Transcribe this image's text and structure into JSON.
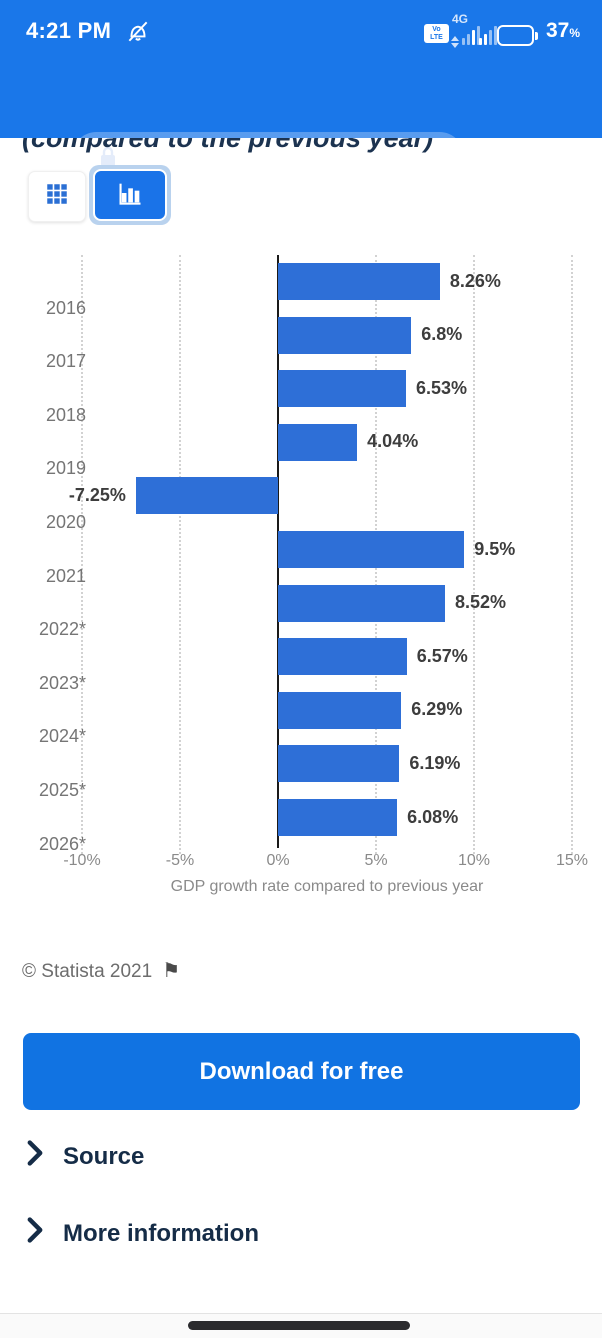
{
  "status_bar": {
    "time": "4:21 PM",
    "volte_line1": "Vo",
    "volte_line2": "LTE",
    "network": "4G",
    "battery_percent": "37",
    "percent_sign": "%"
  },
  "browser": {
    "url_host": "statista.com",
    "url_path": "/statistics/2636",
    "tab_count": "2"
  },
  "page": {
    "title_fragment": "(compared to the previous year)",
    "copyright": "© Statista 2021",
    "flag_glyph": "⚑",
    "download_button": "Download for free",
    "source_label": "Source",
    "more_info_label": "More information"
  },
  "chart_data": {
    "type": "bar",
    "orientation": "horizontal",
    "categories": [
      "2016",
      "2017",
      "2018",
      "2019",
      "2020",
      "2021",
      "2022*",
      "2023*",
      "2024*",
      "2025*",
      "2026*"
    ],
    "values": [
      8.26,
      6.8,
      6.53,
      4.04,
      -7.25,
      9.5,
      8.52,
      6.57,
      6.29,
      6.19,
      6.08
    ],
    "value_labels": [
      "8.26%",
      "6.8%",
      "6.53%",
      "4.04%",
      "-7.25%",
      "9.5%",
      "8.52%",
      "6.57%",
      "6.29%",
      "6.19%",
      "6.08%"
    ],
    "xlabel": "GDP growth rate compared to previous year",
    "xticks": [
      -10,
      -5,
      0,
      5,
      10,
      15
    ],
    "xtick_labels": [
      "-10%",
      "-5%",
      "0%",
      "5%",
      "10%",
      "15%"
    ],
    "xlim": [
      -10,
      15
    ],
    "bar_color": "#2e6fd7",
    "grid": "vertical-dotted",
    "legend": "none"
  }
}
